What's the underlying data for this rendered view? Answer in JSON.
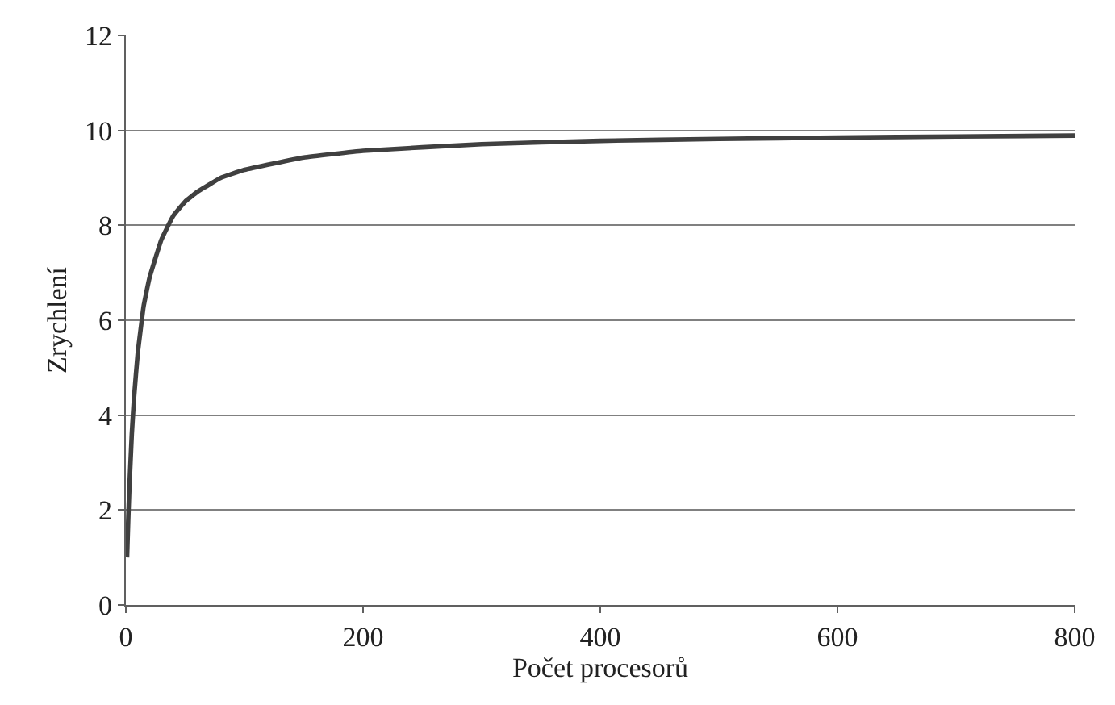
{
  "chart_data": {
    "type": "line",
    "xlabel": "Počet procesorů",
    "ylabel": "Zrychlení",
    "x": [
      1,
      2,
      3,
      5,
      7,
      10,
      15,
      20,
      30,
      40,
      50,
      60,
      80,
      100,
      150,
      200,
      300,
      400,
      500,
      600,
      700,
      800
    ],
    "series": [
      {
        "color": "#404040",
        "values": [
          1.0,
          1.8,
          2.5,
          3.6,
          4.4,
          5.3,
          6.3,
          6.9,
          7.7,
          8.2,
          8.5,
          8.7,
          9.0,
          9.17,
          9.43,
          9.57,
          9.71,
          9.78,
          9.82,
          9.85,
          9.87,
          9.89
        ]
      }
    ],
    "xlim": [
      0,
      800
    ],
    "xticks": [
      0,
      200,
      400,
      600,
      800
    ],
    "ylim": [
      0,
      12
    ],
    "yticks": [
      0,
      2,
      4,
      6,
      8,
      10,
      12
    ],
    "grid": "y",
    "marker": "none",
    "line_style": "solid"
  }
}
